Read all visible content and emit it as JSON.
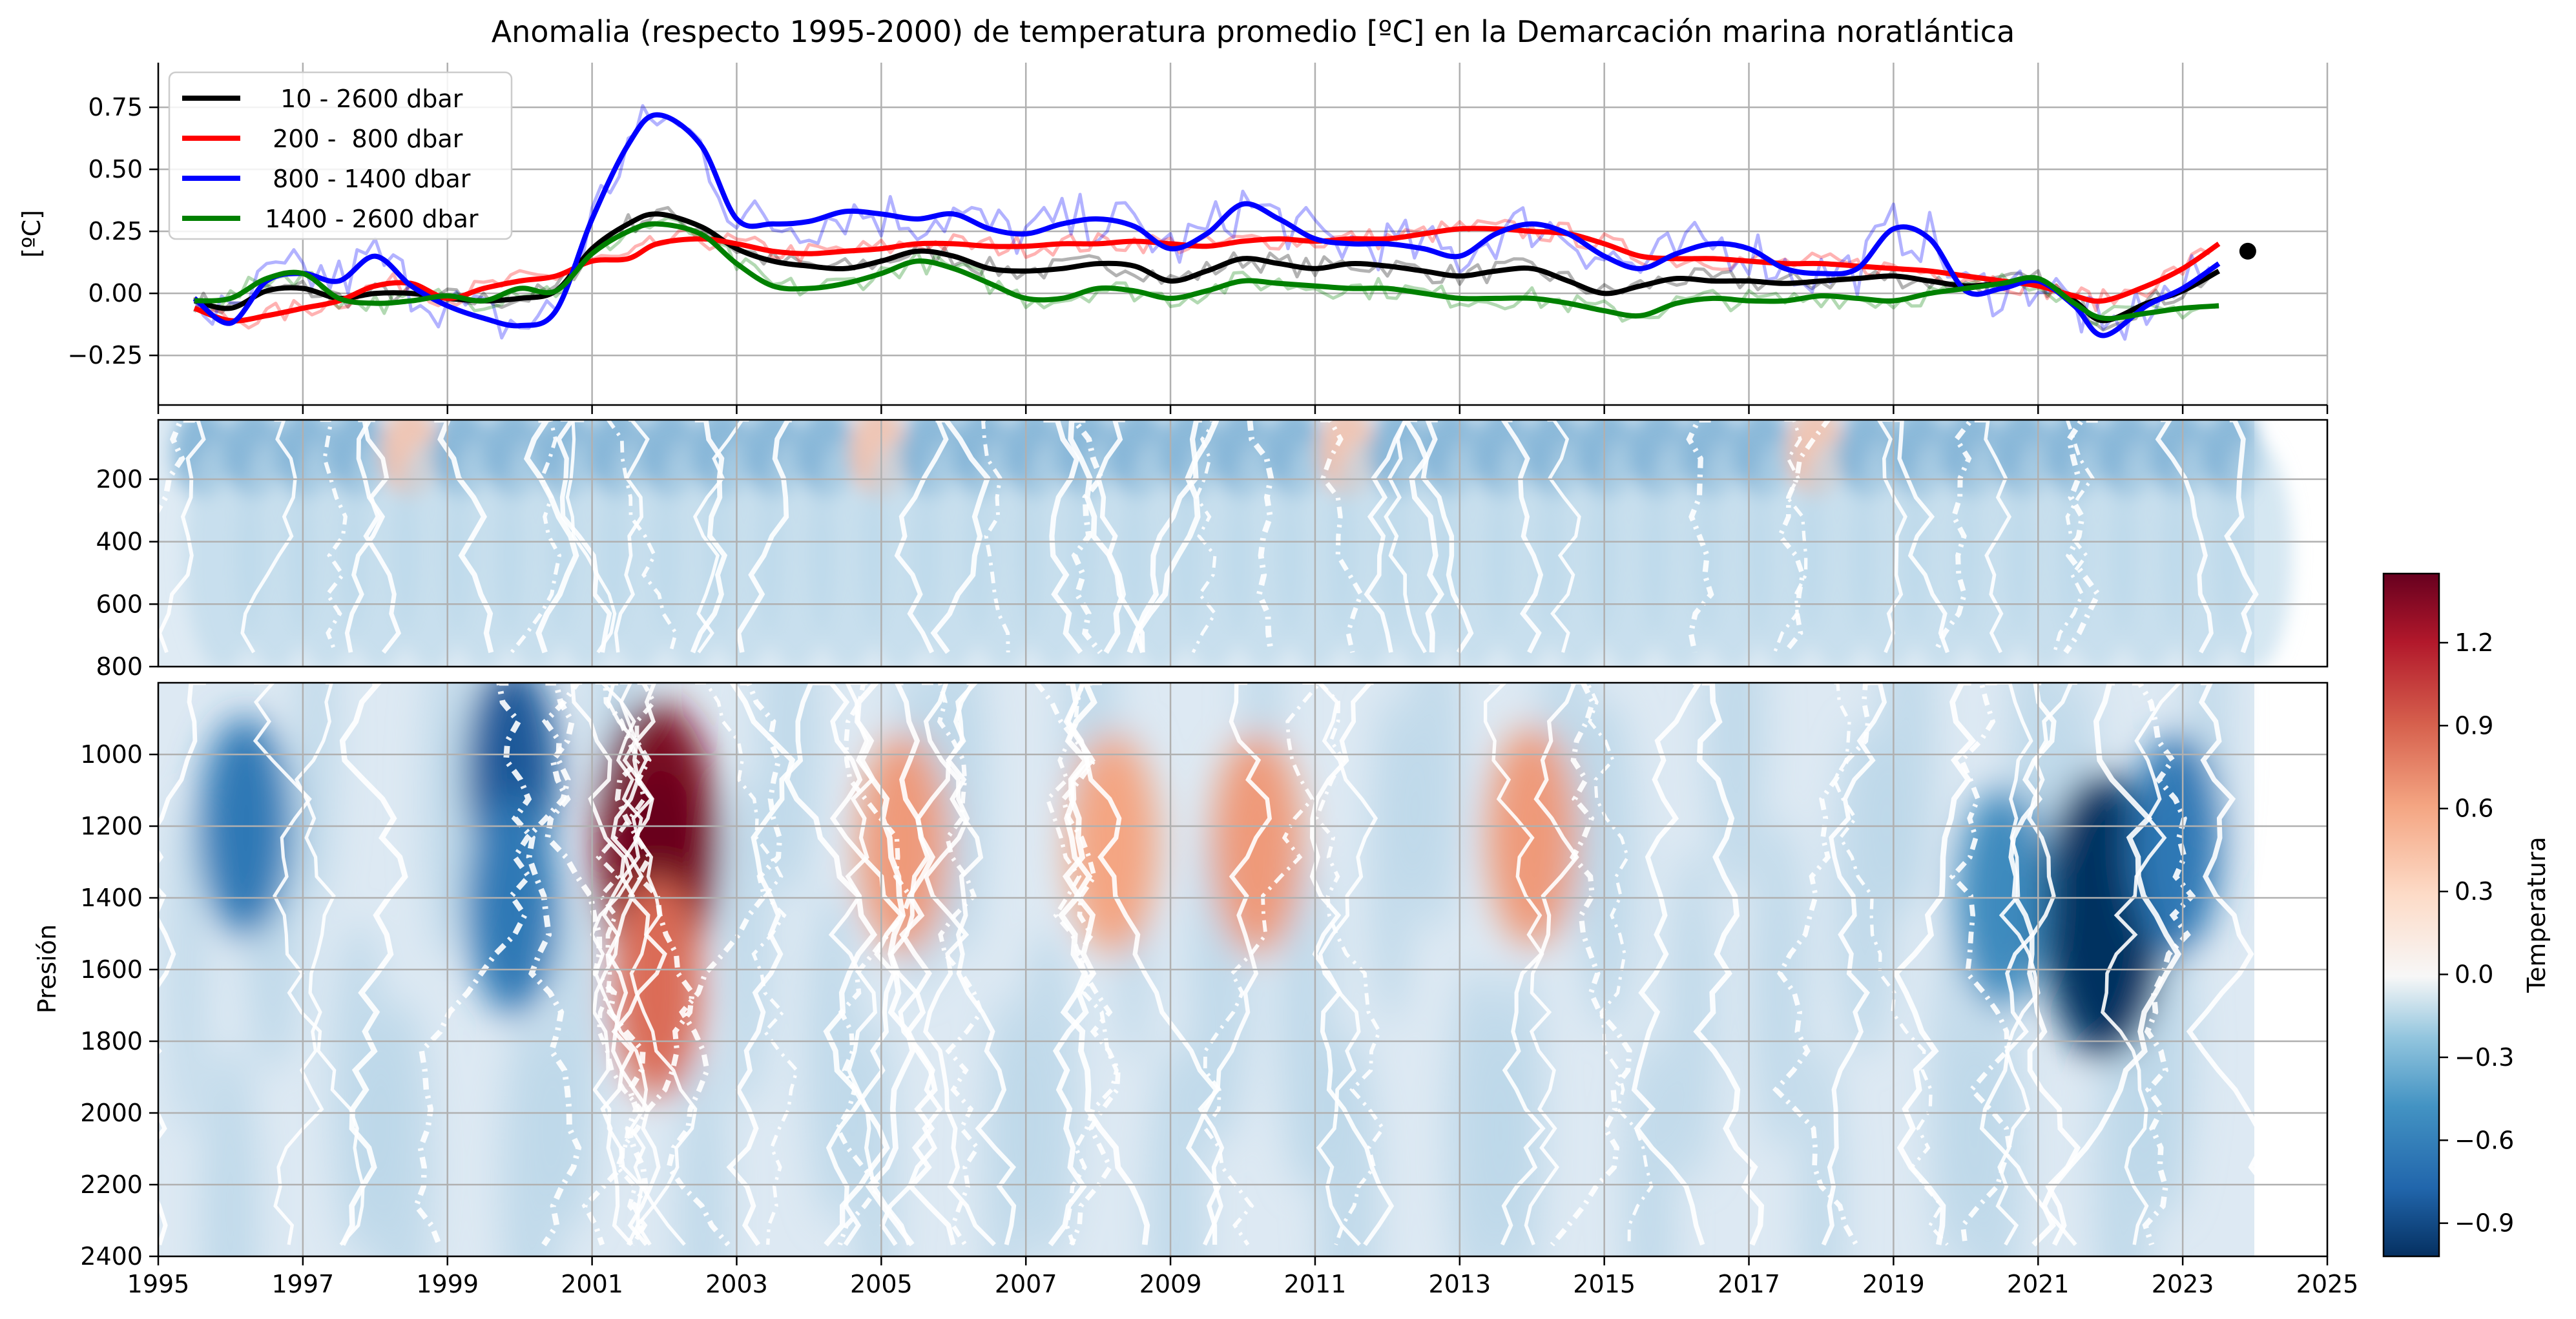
{
  "title": "Anomalia (respecto 1995-2000) de temperatura promedio [ºC] en la Demarcación marina noratlántica",
  "chart_data": [
    {
      "type": "line",
      "panel": "top",
      "ylabel": "[ºC]",
      "xlim": [
        1995,
        2025
      ],
      "ylim": [
        -0.45,
        0.93
      ],
      "yticks": [
        -0.25,
        0.0,
        0.25,
        0.5,
        0.75
      ],
      "ytick_labels": [
        "−0.25",
        "0.00",
        "0.25",
        "0.50",
        "0.75"
      ],
      "grid": true,
      "legend_position": "top-left",
      "x": [
        1995.5,
        1996.0,
        1996.5,
        1997.0,
        1997.5,
        1998.0,
        1998.5,
        1999.0,
        1999.5,
        2000.0,
        2000.5,
        2001.0,
        2001.5,
        2001.9,
        2002.5,
        2003.0,
        2003.5,
        2004.0,
        2004.5,
        2005.0,
        2005.5,
        2006.0,
        2006.5,
        2007.0,
        2007.5,
        2008.0,
        2008.5,
        2009.0,
        2009.5,
        2010.0,
        2010.5,
        2011.0,
        2011.5,
        2012.0,
        2012.5,
        2013.0,
        2013.5,
        2014.0,
        2014.5,
        2015.0,
        2015.5,
        2016.0,
        2016.5,
        2017.0,
        2017.5,
        2018.0,
        2018.5,
        2019.0,
        2019.5,
        2020.0,
        2020.5,
        2021.0,
        2021.5,
        2021.9,
        2022.5,
        2023.0,
        2023.5
      ],
      "series": [
        {
          "name": "  10 - 2600 dbar",
          "color": "#000000",
          "values": [
            -0.03,
            -0.06,
            0.01,
            0.02,
            -0.02,
            0.0,
            0.0,
            -0.02,
            -0.03,
            -0.02,
            0.01,
            0.18,
            0.28,
            0.32,
            0.27,
            0.18,
            0.13,
            0.11,
            0.1,
            0.13,
            0.17,
            0.15,
            0.1,
            0.09,
            0.1,
            0.12,
            0.11,
            0.05,
            0.09,
            0.14,
            0.12,
            0.1,
            0.12,
            0.11,
            0.09,
            0.07,
            0.09,
            0.1,
            0.05,
            0.0,
            0.03,
            0.06,
            0.05,
            0.05,
            0.04,
            0.05,
            0.06,
            0.07,
            0.05,
            0.03,
            0.04,
            0.05,
            -0.03,
            -0.11,
            -0.04,
            0.01,
            0.09
          ]
        },
        {
          "name": " 200 -  800 dbar",
          "color": "#ff0000",
          "values": [
            -0.06,
            -0.11,
            -0.09,
            -0.06,
            -0.03,
            0.03,
            0.04,
            -0.02,
            0.02,
            0.05,
            0.07,
            0.13,
            0.14,
            0.2,
            0.22,
            0.2,
            0.17,
            0.16,
            0.17,
            0.18,
            0.2,
            0.2,
            0.19,
            0.19,
            0.2,
            0.2,
            0.21,
            0.2,
            0.19,
            0.21,
            0.22,
            0.21,
            0.22,
            0.22,
            0.24,
            0.26,
            0.26,
            0.25,
            0.24,
            0.2,
            0.15,
            0.14,
            0.14,
            0.13,
            0.12,
            0.12,
            0.11,
            0.1,
            0.09,
            0.07,
            0.05,
            0.03,
            -0.01,
            -0.03,
            0.03,
            0.1,
            0.2
          ]
        },
        {
          "name": " 800 - 1400 dbar",
          "color": "#0000ff",
          "values": [
            -0.02,
            -0.12,
            0.05,
            0.08,
            0.05,
            0.15,
            0.03,
            -0.05,
            -0.1,
            -0.13,
            -0.07,
            0.3,
            0.6,
            0.72,
            0.6,
            0.3,
            0.28,
            0.29,
            0.33,
            0.32,
            0.3,
            0.32,
            0.26,
            0.24,
            0.28,
            0.3,
            0.27,
            0.18,
            0.24,
            0.36,
            0.3,
            0.22,
            0.2,
            0.2,
            0.18,
            0.15,
            0.24,
            0.28,
            0.24,
            0.15,
            0.1,
            0.16,
            0.2,
            0.18,
            0.1,
            0.08,
            0.1,
            0.26,
            0.22,
            0.01,
            0.02,
            0.05,
            -0.05,
            -0.17,
            -0.05,
            0.02,
            0.12
          ]
        },
        {
          "name": "1400 - 2600 dbar",
          "color": "#008000",
          "values": [
            -0.03,
            -0.02,
            0.06,
            0.08,
            -0.02,
            -0.04,
            -0.03,
            -0.01,
            -0.03,
            0.02,
            0.01,
            0.16,
            0.25,
            0.28,
            0.24,
            0.12,
            0.03,
            0.02,
            0.04,
            0.08,
            0.13,
            0.1,
            0.04,
            -0.02,
            -0.02,
            0.02,
            0.01,
            -0.02,
            0.01,
            0.05,
            0.04,
            0.03,
            0.02,
            0.02,
            0.0,
            -0.02,
            -0.02,
            -0.02,
            -0.04,
            -0.07,
            -0.09,
            -0.04,
            -0.02,
            -0.03,
            -0.03,
            -0.01,
            -0.02,
            -0.03,
            0.0,
            0.02,
            0.04,
            0.06,
            -0.04,
            -0.1,
            -0.08,
            -0.06,
            -0.05
          ]
        }
      ],
      "end_marker": {
        "x": 2023.9,
        "y": 0.17
      }
    },
    {
      "type": "heatmap",
      "panel": "middle",
      "xlim": [
        1995,
        2025
      ],
      "ylim": [
        800,
        10
      ],
      "yticks": [
        200,
        400,
        600,
        800
      ],
      "ytick_labels": [
        "200",
        "400",
        "600",
        "800"
      ],
      "grid": true
    },
    {
      "type": "heatmap",
      "panel": "bottom",
      "ylabel": "Presión",
      "xlim": [
        1995,
        2025
      ],
      "ylim": [
        2400,
        800
      ],
      "yticks": [
        1000,
        1200,
        1400,
        1600,
        1800,
        2000,
        2200,
        2400
      ],
      "ytick_labels": [
        "1000",
        "1200",
        "1400",
        "1600",
        "1800",
        "2000",
        "2200",
        "2400"
      ],
      "xticks": [
        1995,
        1997,
        1999,
        2001,
        2003,
        2005,
        2007,
        2009,
        2011,
        2013,
        2015,
        2017,
        2019,
        2021,
        2023,
        2025
      ],
      "xtick_labels": [
        "1995",
        "1997",
        "1999",
        "2001",
        "2003",
        "2005",
        "2007",
        "2009",
        "2011",
        "2013",
        "2015",
        "2017",
        "2019",
        "2021",
        "2023",
        "2025"
      ],
      "grid": true,
      "anomalies": [
        {
          "x": 2001.9,
          "y": 1250,
          "value": 1.3
        },
        {
          "x": 2001.9,
          "y": 1650,
          "value": 0.7
        },
        {
          "x": 2005.3,
          "y": 1250,
          "value": 0.5
        },
        {
          "x": 2008.2,
          "y": 1250,
          "value": 0.45
        },
        {
          "x": 2010.2,
          "y": 1250,
          "value": 0.5
        },
        {
          "x": 2014.0,
          "y": 1230,
          "value": 0.5
        },
        {
          "x": 1999.9,
          "y": 1050,
          "value": -0.7
        },
        {
          "x": 1999.9,
          "y": 1420,
          "value": -0.5
        },
        {
          "x": 1996.2,
          "y": 1200,
          "value": -0.5
        },
        {
          "x": 2021.9,
          "y": 1450,
          "value": -1.0
        },
        {
          "x": 2022.9,
          "y": 1250,
          "value": -0.5
        },
        {
          "x": 2020.5,
          "y": 1400,
          "value": -0.4
        }
      ]
    },
    {
      "type": "colorbar",
      "label": "Temperatura",
      "vmin": -1.02,
      "vmax": 1.45,
      "ticks": [
        -0.9,
        -0.6,
        -0.3,
        0.0,
        0.3,
        0.6,
        0.9,
        1.2
      ],
      "tick_labels": [
        "−0.9",
        "−0.6",
        "−0.3",
        "0.0",
        "0.3",
        "0.6",
        "0.9",
        "1.2"
      ],
      "colormap": "RdBu_r"
    }
  ]
}
